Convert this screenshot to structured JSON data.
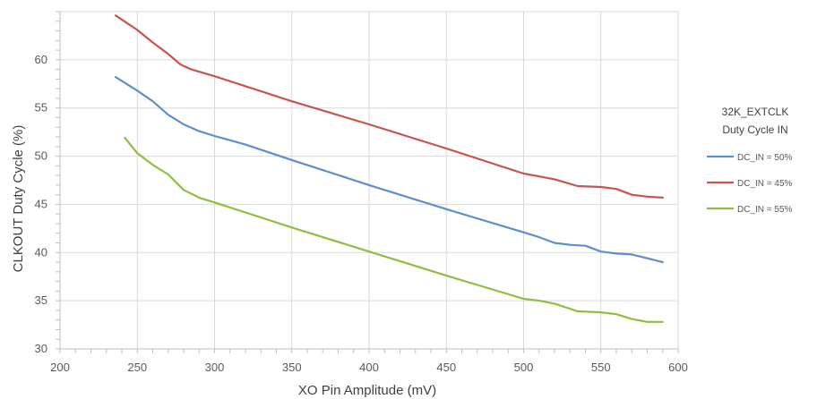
{
  "chart_data": {
    "type": "line",
    "title": "",
    "xlabel": "XO Pin Amplitude (mV)",
    "ylabel": "CLKOUT Duty Cycle (%)",
    "xlim": [
      200,
      600
    ],
    "ylim": [
      30,
      65
    ],
    "xticks": [
      "200",
      "250",
      "300",
      "350",
      "400",
      "450",
      "500",
      "550",
      "600"
    ],
    "yticks": [
      "30",
      "35",
      "40",
      "45",
      "50",
      "55",
      "60"
    ],
    "grid": true,
    "legend": {
      "title_line1": "32K_EXTCLK",
      "title_line2": "Duty Cycle IN",
      "placement": "right"
    },
    "series": [
      {
        "name": "DC_IN = 50%",
        "color": "#5b8fd1",
        "points": [
          [
            236,
            58.2
          ],
          [
            250,
            56.8
          ],
          [
            260,
            55.7
          ],
          [
            270,
            54.3
          ],
          [
            280,
            53.3
          ],
          [
            290,
            52.6
          ],
          [
            300,
            52.1
          ],
          [
            320,
            51.2
          ],
          [
            350,
            49.6
          ],
          [
            400,
            47.0
          ],
          [
            450,
            44.5
          ],
          [
            500,
            42.1
          ],
          [
            510,
            41.6
          ],
          [
            520,
            41.0
          ],
          [
            530,
            40.8
          ],
          [
            540,
            40.7
          ],
          [
            550,
            40.1
          ],
          [
            560,
            39.9
          ],
          [
            570,
            39.8
          ],
          [
            580,
            39.4
          ],
          [
            590,
            39.0
          ]
        ]
      },
      {
        "name": "DC_IN = 45%",
        "color": "#c9524f",
        "points": [
          [
            236,
            64.6
          ],
          [
            250,
            63.1
          ],
          [
            260,
            61.8
          ],
          [
            270,
            60.6
          ],
          [
            278,
            59.5
          ],
          [
            285,
            59.0
          ],
          [
            300,
            58.3
          ],
          [
            350,
            55.7
          ],
          [
            400,
            53.3
          ],
          [
            450,
            50.8
          ],
          [
            500,
            48.2
          ],
          [
            510,
            47.9
          ],
          [
            520,
            47.6
          ],
          [
            535,
            46.9
          ],
          [
            550,
            46.8
          ],
          [
            560,
            46.6
          ],
          [
            570,
            46.0
          ],
          [
            580,
            45.8
          ],
          [
            590,
            45.7
          ]
        ]
      },
      {
        "name": "DC_IN = 55%",
        "color": "#8fbe3f",
        "points": [
          [
            242,
            51.9
          ],
          [
            250,
            50.3
          ],
          [
            260,
            49.1
          ],
          [
            270,
            48.1
          ],
          [
            275,
            47.3
          ],
          [
            280,
            46.5
          ],
          [
            290,
            45.7
          ],
          [
            300,
            45.2
          ],
          [
            350,
            42.6
          ],
          [
            400,
            40.1
          ],
          [
            450,
            37.6
          ],
          [
            500,
            35.2
          ],
          [
            510,
            35.0
          ],
          [
            520,
            34.7
          ],
          [
            535,
            33.9
          ],
          [
            550,
            33.8
          ],
          [
            560,
            33.6
          ],
          [
            570,
            33.1
          ],
          [
            580,
            32.8
          ],
          [
            590,
            32.8
          ]
        ]
      }
    ]
  }
}
